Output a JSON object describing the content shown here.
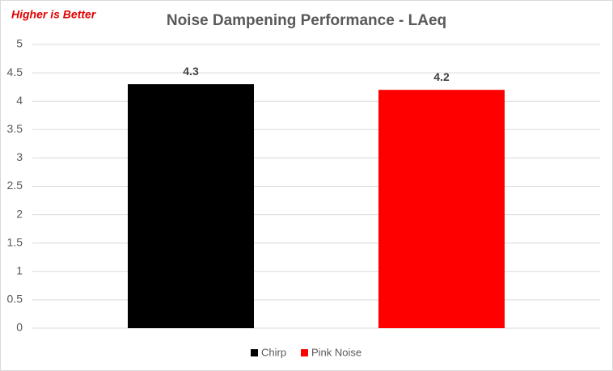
{
  "chart_data": {
    "type": "bar",
    "title": "Noise Dampening Performance - LAeq",
    "annotation": "Higher is Better",
    "categories": [
      null
    ],
    "series": [
      {
        "name": "Chirp",
        "color": "#000000",
        "values": [
          4.3
        ]
      },
      {
        "name": "Pink Noise",
        "color": "#ff0000",
        "values": [
          4.2
        ]
      }
    ],
    "ylim": [
      0,
      5
    ],
    "yticks": [
      0,
      0.5,
      1,
      1.5,
      2,
      2.5,
      3,
      3.5,
      4,
      4.5,
      5
    ],
    "grid": true,
    "legend": "bottom"
  }
}
